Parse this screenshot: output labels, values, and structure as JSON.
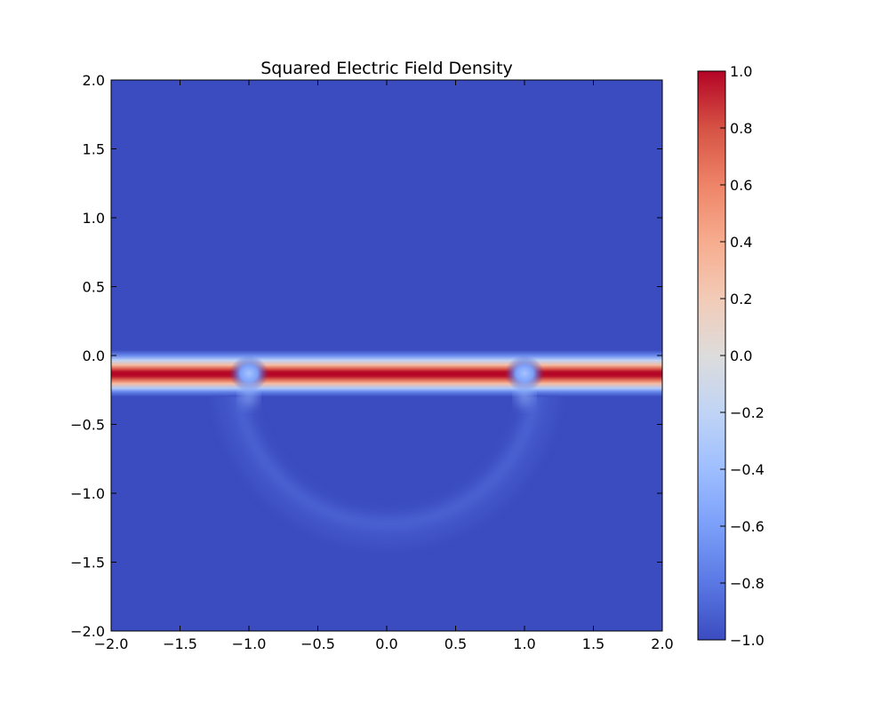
{
  "chart_data": {
    "type": "heatmap",
    "title": "Squared Electric Field Density",
    "xlabel": "",
    "ylabel": "",
    "xlim": [
      -2.0,
      2.0
    ],
    "ylim": [
      -2.0,
      2.0
    ],
    "x_ticks": [
      -2.0,
      -1.5,
      -1.0,
      -0.5,
      0.0,
      0.5,
      1.0,
      1.5,
      2.0
    ],
    "y_ticks": [
      -2.0,
      -1.5,
      -1.0,
      -0.5,
      0.0,
      0.5,
      1.0,
      1.5,
      2.0
    ],
    "x_tick_labels": [
      "−2.0",
      "−1.5",
      "−1.0",
      "−0.5",
      "0.0",
      "0.5",
      "1.0",
      "1.5",
      "2.0"
    ],
    "y_tick_labels": [
      "−2.0",
      "−1.5",
      "−1.0",
      "−0.5",
      "0.0",
      "0.5",
      "1.0",
      "1.5",
      "2.0"
    ],
    "colormap": "coolwarm",
    "colorbar": {
      "range": [
        -1.0,
        1.0
      ],
      "ticks": [
        -1.0,
        -0.8,
        -0.6,
        -0.4,
        -0.2,
        0.0,
        0.2,
        0.4,
        0.6,
        0.8,
        1.0
      ],
      "tick_labels": [
        "−1.0",
        "−0.8",
        "−0.6",
        "−0.4",
        "−0.2",
        "0.0",
        "0.2",
        "0.4",
        "0.6",
        "0.8",
        "1.0"
      ],
      "color_stops": [
        {
          "value": -1.0,
          "color": "#3b4cc0"
        },
        {
          "value": -0.8,
          "color": "#5a78e4"
        },
        {
          "value": -0.6,
          "color": "#7b9ff9"
        },
        {
          "value": -0.4,
          "color": "#9ebeff"
        },
        {
          "value": -0.2,
          "color": "#c0d4f5"
        },
        {
          "value": 0.0,
          "color": "#dddcdc"
        },
        {
          "value": 0.2,
          "color": "#f2cbb7"
        },
        {
          "value": 0.4,
          "color": "#f7ac8e"
        },
        {
          "value": 0.6,
          "color": "#ee8468"
        },
        {
          "value": 0.8,
          "color": "#d65244"
        },
        {
          "value": 1.0,
          "color": "#b40426"
        }
      ]
    },
    "background_value": -1.0,
    "features": {
      "horizontal_band": {
        "y_center": -0.13,
        "y_half_width": 0.13,
        "x_range": [
          -2.0,
          2.0
        ],
        "peak_value": 1.0
      },
      "band_gaps_at_x": [
        -1.0,
        1.0
      ],
      "semicircle_halo": {
        "center": [
          0.0,
          -0.13
        ],
        "radius": 1.0,
        "y_below": true,
        "value": -0.93
      }
    },
    "grid": false
  }
}
